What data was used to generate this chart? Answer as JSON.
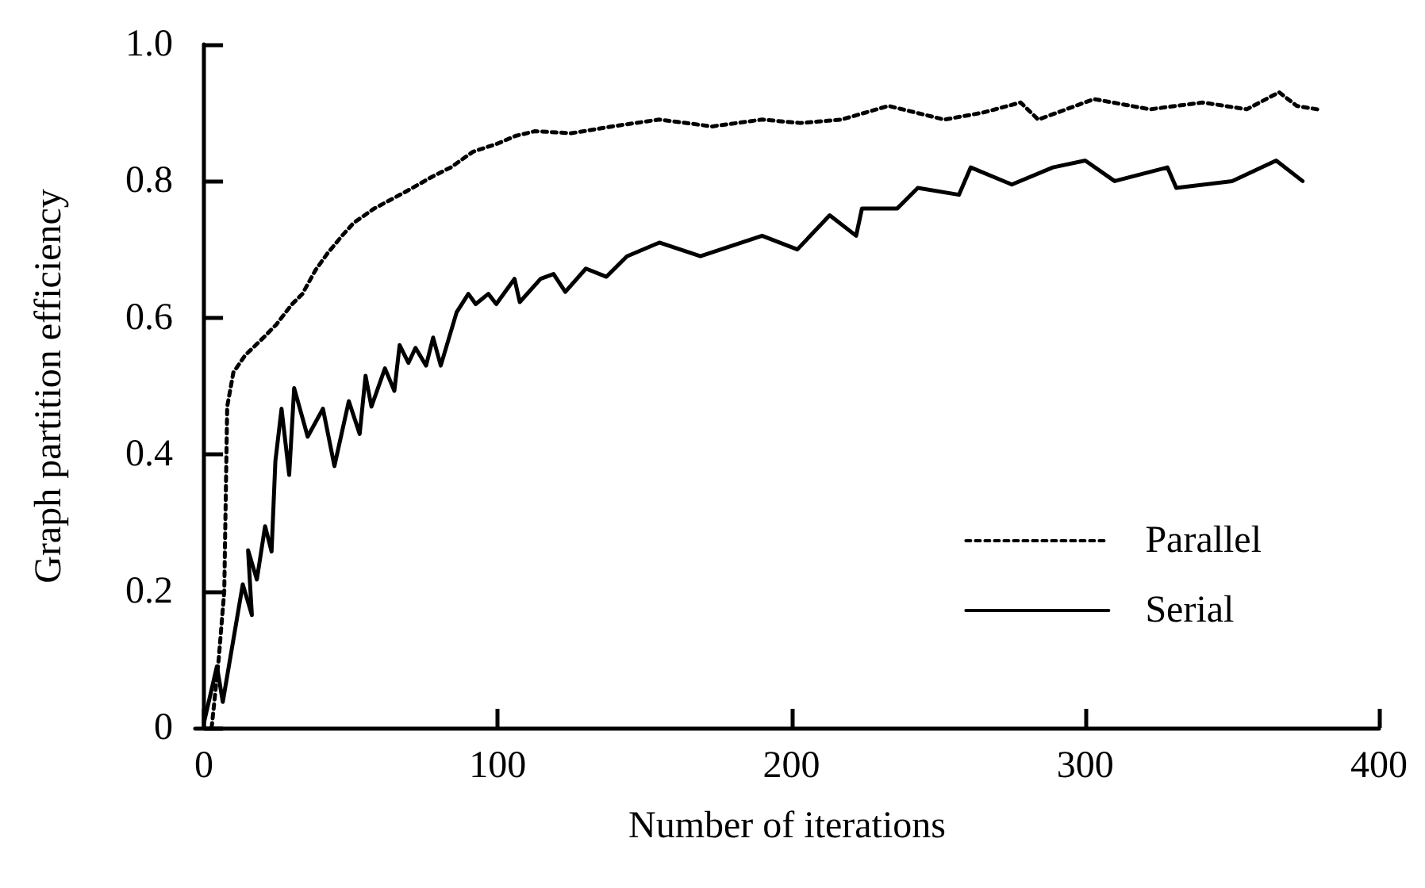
{
  "chart_data": {
    "type": "line",
    "xlabel": "Number of iterations",
    "ylabel": "Graph partition efficiency",
    "xlim": [
      -3,
      400
    ],
    "ylim": [
      0,
      1
    ],
    "xticks": [
      0,
      100,
      200,
      300,
      400
    ],
    "yticks": [
      0,
      0.2,
      0.4,
      0.6,
      0.8,
      {
        "value": 1,
        "label": "1.0"
      }
    ],
    "grid": false,
    "legend": "bottom right",
    "marker": "none",
    "series": [
      {
        "name": "Parallel",
        "color": "#000000",
        "line_style": "dotted",
        "x": [
          2.6,
          5,
          6.9,
          7.9,
          10,
          14,
          20,
          24.6,
          30,
          33.5,
          38,
          42,
          47,
          51,
          58,
          65,
          71,
          77.5,
          84,
          91.6,
          100,
          106,
          112.7,
          125,
          139,
          155,
          173,
          190,
          203,
          217,
          233,
          252,
          265,
          278,
          284,
          303,
          322,
          340,
          355,
          366,
          372,
          379
        ],
        "values": [
          0,
          0.1,
          0.2,
          0.47,
          0.52,
          0.545,
          0.57,
          0.59,
          0.62,
          0.635,
          0.67,
          0.694,
          0.72,
          0.739,
          0.76,
          0.776,
          0.79,
          0.806,
          0.82,
          0.843,
          0.855,
          0.866,
          0.873,
          0.87,
          0.88,
          0.89,
          0.88,
          0.89,
          0.885,
          0.89,
          0.91,
          0.89,
          0.9,
          0.915,
          0.89,
          0.92,
          0.905,
          0.915,
          0.905,
          0.93,
          0.91,
          0.905
        ]
      },
      {
        "name": "Serial",
        "color": "#000000",
        "line_style": "solid",
        "x": [
          0,
          4.4,
          6.4,
          13.2,
          16.3,
          15,
          18,
          20.8,
          23,
          24.3,
          26.4,
          29,
          30.7,
          35.3,
          40.5,
          44.4,
          49.3,
          53,
          55,
          57,
          61.6,
          64.8,
          66.6,
          69.6,
          72,
          75.6,
          78,
          80.6,
          86,
          90,
          92.5,
          96.8,
          99.5,
          105.7,
          107.5,
          114.6,
          119,
          123,
          130,
          137,
          144,
          155,
          169,
          190,
          202,
          213,
          222,
          224,
          236,
          243,
          257,
          261,
          275,
          289,
          300,
          310,
          328,
          331,
          350,
          365,
          374
        ],
        "values": [
          0.008,
          0.09,
          0.038,
          0.21,
          0.165,
          0.26,
          0.217,
          0.295,
          0.258,
          0.39,
          0.467,
          0.37,
          0.497,
          0.426,
          0.467,
          0.383,
          0.478,
          0.43,
          0.515,
          0.47,
          0.526,
          0.493,
          0.56,
          0.534,
          0.556,
          0.53,
          0.571,
          0.53,
          0.608,
          0.635,
          0.62,
          0.635,
          0.62,
          0.657,
          0.623,
          0.657,
          0.664,
          0.638,
          0.672,
          0.66,
          0.69,
          0.71,
          0.69,
          0.72,
          0.7,
          0.75,
          0.72,
          0.76,
          0.76,
          0.79,
          0.78,
          0.82,
          0.795,
          0.82,
          0.83,
          0.8,
          0.82,
          0.79,
          0.8,
          0.83,
          0.8
        ]
      }
    ]
  }
}
